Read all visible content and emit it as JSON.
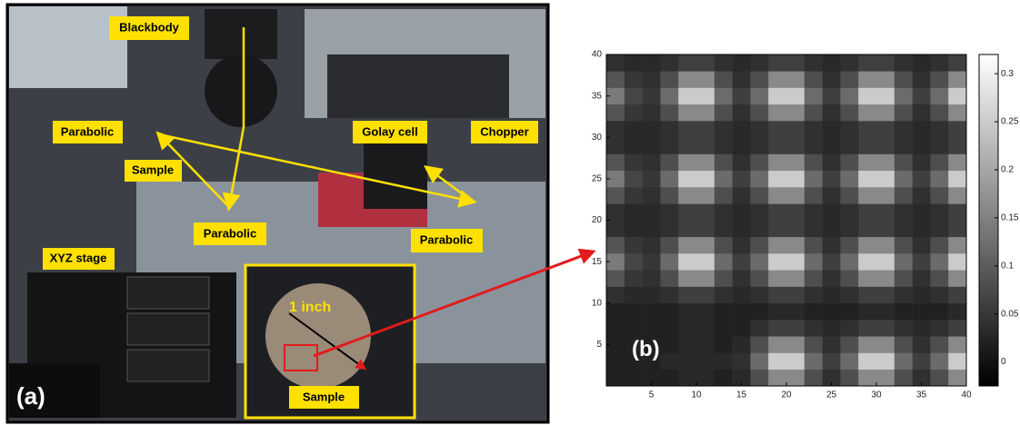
{
  "photo": {
    "labels": [
      "Blackbody",
      "Parabolic",
      "Sample",
      "Parabolic",
      "XYZ stage",
      "Golay cell",
      "Chopper",
      "Parabolic",
      "Sample"
    ],
    "inset_label": "1 inch",
    "panel_a": "(a)"
  },
  "chart_data": {
    "type": "heatmap",
    "panel_label": "(b)",
    "colormap": "gray",
    "x": [
      1,
      3,
      5,
      7,
      9,
      11,
      13,
      15,
      17,
      19,
      21,
      23,
      25,
      27,
      29,
      31,
      33,
      35,
      37,
      39
    ],
    "y": [
      1,
      3,
      5,
      7,
      9,
      11,
      13,
      15,
      17,
      19,
      21,
      23,
      25,
      27,
      29,
      31,
      33,
      35,
      37,
      39
    ],
    "z": [
      [
        0.02,
        0.02,
        0.02,
        0.02,
        0.03,
        0.03,
        0.02,
        0.03,
        0.08,
        0.16,
        0.16,
        0.08,
        0.04,
        0.08,
        0.16,
        0.16,
        0.08,
        0.04,
        0.08,
        0.16
      ],
      [
        0.02,
        0.02,
        0.02,
        0.03,
        0.03,
        0.03,
        0.03,
        0.04,
        0.12,
        0.25,
        0.25,
        0.12,
        0.06,
        0.12,
        0.25,
        0.25,
        0.12,
        0.06,
        0.12,
        0.25
      ],
      [
        0.02,
        0.02,
        0.02,
        0.02,
        0.03,
        0.03,
        0.02,
        0.03,
        0.08,
        0.16,
        0.16,
        0.08,
        0.04,
        0.08,
        0.16,
        0.16,
        0.08,
        0.04,
        0.08,
        0.16
      ],
      [
        0.02,
        0.02,
        0.02,
        0.02,
        0.03,
        0.03,
        0.02,
        0.02,
        0.04,
        0.06,
        0.06,
        0.04,
        0.03,
        0.04,
        0.06,
        0.06,
        0.04,
        0.03,
        0.04,
        0.06
      ],
      [
        0.02,
        0.02,
        0.02,
        0.02,
        0.03,
        0.03,
        0.02,
        0.02,
        0.02,
        0.03,
        0.03,
        0.02,
        0.02,
        0.02,
        0.03,
        0.03,
        0.02,
        0.02,
        0.02,
        0.03
      ],
      [
        0.04,
        0.03,
        0.03,
        0.04,
        0.06,
        0.06,
        0.04,
        0.03,
        0.04,
        0.06,
        0.06,
        0.04,
        0.03,
        0.04,
        0.06,
        0.06,
        0.04,
        0.03,
        0.04,
        0.06
      ],
      [
        0.09,
        0.05,
        0.04,
        0.08,
        0.16,
        0.16,
        0.08,
        0.04,
        0.08,
        0.16,
        0.16,
        0.08,
        0.04,
        0.08,
        0.16,
        0.16,
        0.08,
        0.04,
        0.08,
        0.16
      ],
      [
        0.14,
        0.07,
        0.05,
        0.12,
        0.25,
        0.25,
        0.12,
        0.06,
        0.12,
        0.25,
        0.25,
        0.12,
        0.06,
        0.12,
        0.25,
        0.25,
        0.12,
        0.06,
        0.12,
        0.25
      ],
      [
        0.09,
        0.05,
        0.04,
        0.08,
        0.16,
        0.16,
        0.08,
        0.04,
        0.08,
        0.16,
        0.16,
        0.08,
        0.04,
        0.08,
        0.16,
        0.16,
        0.08,
        0.04,
        0.08,
        0.16
      ],
      [
        0.04,
        0.03,
        0.03,
        0.04,
        0.06,
        0.06,
        0.04,
        0.03,
        0.04,
        0.06,
        0.06,
        0.04,
        0.03,
        0.04,
        0.06,
        0.06,
        0.04,
        0.03,
        0.04,
        0.06
      ],
      [
        0.04,
        0.03,
        0.03,
        0.04,
        0.06,
        0.06,
        0.04,
        0.03,
        0.04,
        0.06,
        0.06,
        0.04,
        0.03,
        0.04,
        0.06,
        0.06,
        0.04,
        0.03,
        0.04,
        0.06
      ],
      [
        0.09,
        0.05,
        0.04,
        0.08,
        0.16,
        0.16,
        0.08,
        0.04,
        0.08,
        0.16,
        0.16,
        0.08,
        0.04,
        0.08,
        0.16,
        0.16,
        0.08,
        0.04,
        0.08,
        0.16
      ],
      [
        0.14,
        0.07,
        0.05,
        0.12,
        0.25,
        0.25,
        0.12,
        0.06,
        0.12,
        0.25,
        0.25,
        0.12,
        0.06,
        0.12,
        0.25,
        0.25,
        0.12,
        0.06,
        0.12,
        0.25
      ],
      [
        0.09,
        0.05,
        0.04,
        0.08,
        0.16,
        0.16,
        0.08,
        0.04,
        0.08,
        0.16,
        0.16,
        0.08,
        0.04,
        0.08,
        0.16,
        0.16,
        0.08,
        0.04,
        0.08,
        0.16
      ],
      [
        0.04,
        0.03,
        0.03,
        0.04,
        0.06,
        0.06,
        0.04,
        0.03,
        0.04,
        0.06,
        0.06,
        0.04,
        0.03,
        0.04,
        0.06,
        0.06,
        0.04,
        0.03,
        0.04,
        0.06
      ],
      [
        0.04,
        0.03,
        0.03,
        0.04,
        0.06,
        0.06,
        0.04,
        0.03,
        0.04,
        0.06,
        0.06,
        0.04,
        0.03,
        0.04,
        0.06,
        0.06,
        0.04,
        0.03,
        0.04,
        0.06
      ],
      [
        0.09,
        0.05,
        0.04,
        0.08,
        0.16,
        0.16,
        0.08,
        0.04,
        0.08,
        0.16,
        0.16,
        0.08,
        0.04,
        0.08,
        0.16,
        0.16,
        0.08,
        0.04,
        0.08,
        0.16
      ],
      [
        0.14,
        0.07,
        0.05,
        0.12,
        0.25,
        0.25,
        0.12,
        0.06,
        0.12,
        0.25,
        0.25,
        0.12,
        0.06,
        0.12,
        0.25,
        0.25,
        0.12,
        0.06,
        0.12,
        0.25
      ],
      [
        0.09,
        0.05,
        0.04,
        0.08,
        0.16,
        0.16,
        0.08,
        0.04,
        0.08,
        0.16,
        0.16,
        0.08,
        0.04,
        0.08,
        0.16,
        0.16,
        0.08,
        0.04,
        0.08,
        0.16
      ],
      [
        0.04,
        0.03,
        0.03,
        0.04,
        0.06,
        0.06,
        0.04,
        0.03,
        0.04,
        0.06,
        0.06,
        0.04,
        0.03,
        0.04,
        0.06,
        0.06,
        0.04,
        0.03,
        0.04,
        0.06
      ]
    ],
    "xlim": [
      0,
      40
    ],
    "ylim": [
      0,
      40
    ],
    "xticks": [
      5,
      10,
      15,
      20,
      25,
      30,
      35,
      40
    ],
    "yticks": [
      5,
      10,
      15,
      20,
      25,
      30,
      35,
      40
    ],
    "clim": [
      -0.025,
      0.32
    ],
    "cticks": [
      0,
      0.05,
      0.1,
      0.15,
      0.2,
      0.25,
      0.3
    ]
  }
}
